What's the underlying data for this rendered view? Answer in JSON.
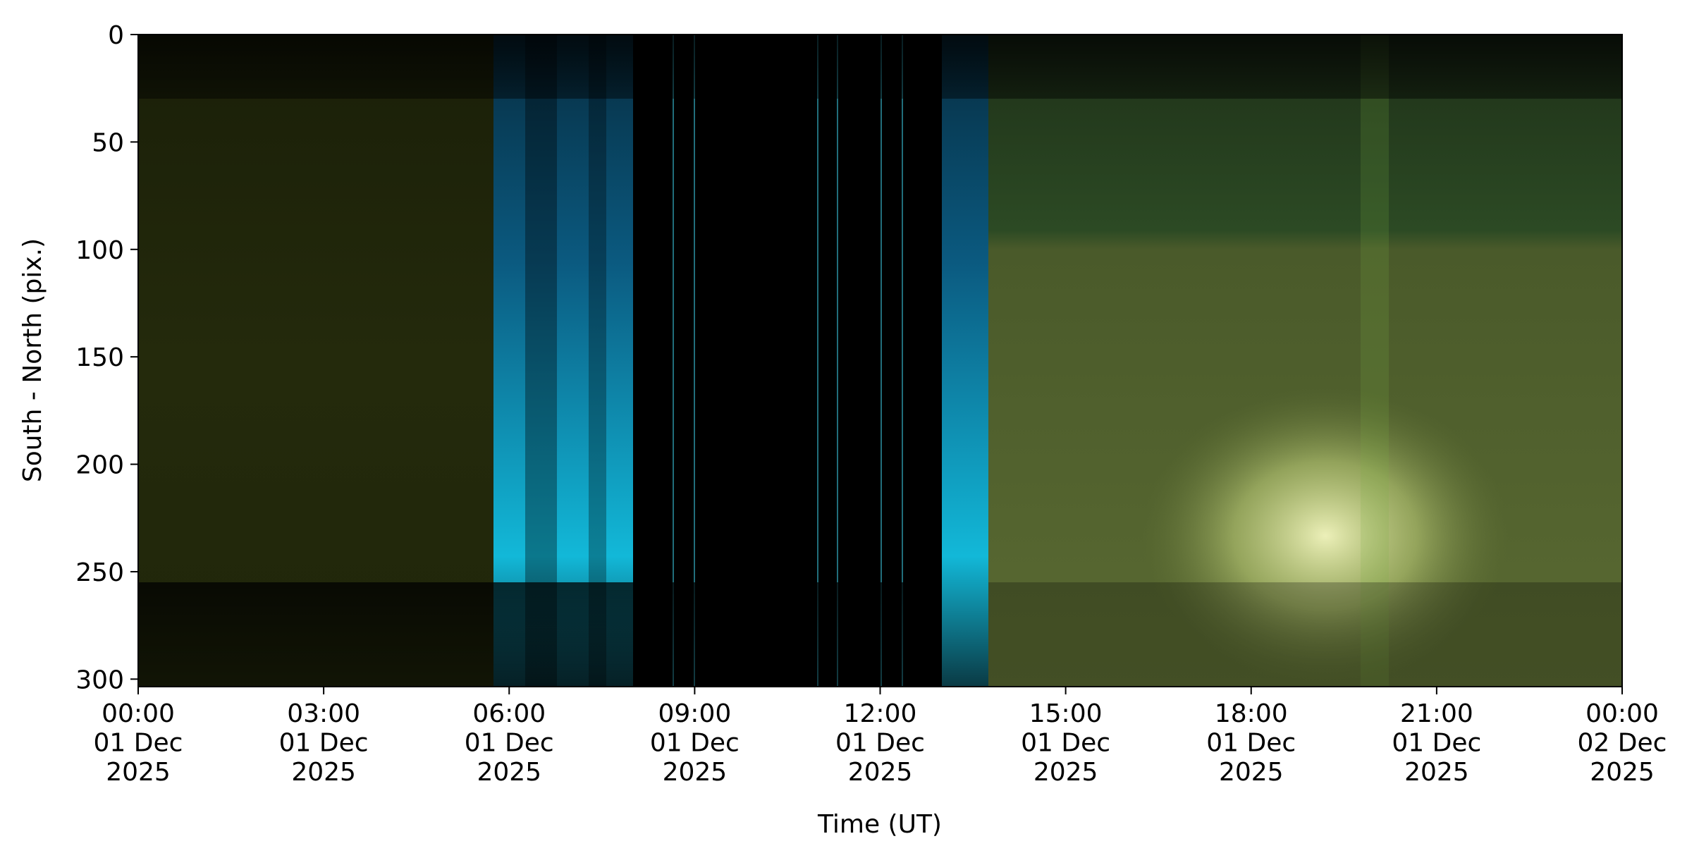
{
  "chart_data": {
    "type": "image",
    "x_label": "Time (UT)",
    "y_label": "South - North (pix.)",
    "xlim": [
      "2025-12-01T00:00",
      "2025-12-02T00:00"
    ],
    "xticks": [
      {
        "value": "2025-12-01T00:00",
        "label": "00:00\n01 Dec\n2025"
      },
      {
        "value": "2025-12-01T03:00",
        "label": "03:00\n01 Dec\n2025"
      },
      {
        "value": "2025-12-01T06:00",
        "label": "06:00\n01 Dec\n2025"
      },
      {
        "value": "2025-12-01T09:00",
        "label": "09:00\n01 Dec\n2025"
      },
      {
        "value": "2025-12-01T12:00",
        "label": "12:00\n01 Dec\n2025"
      },
      {
        "value": "2025-12-01T15:00",
        "label": "15:00\n01 Dec\n2025"
      },
      {
        "value": "2025-12-01T18:00",
        "label": "18:00\n01 Dec\n2025"
      },
      {
        "value": "2025-12-01T21:00",
        "label": "21:00\n01 Dec\n2025"
      },
      {
        "value": "2025-12-02T00:00",
        "label": "00:00\n02 Dec\n2025"
      }
    ],
    "ylim": [
      303.5,
      0
    ],
    "yticks": [
      0,
      50,
      100,
      150,
      200,
      250,
      300
    ]
  }
}
